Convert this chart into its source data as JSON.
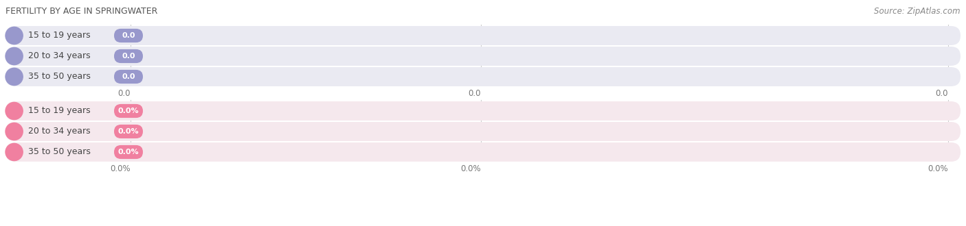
{
  "title": "FERTILITY BY AGE IN SPRINGWATER",
  "source": "Source: ZipAtlas.com",
  "top_section": {
    "categories": [
      "15 to 19 years",
      "20 to 34 years",
      "35 to 50 years"
    ],
    "values": [
      0.0,
      0.0,
      0.0
    ],
    "bar_accent_color": "#9898cc",
    "value_pill_color": "#9898cc",
    "bg_color": "#eaeaf2",
    "tick_labels": [
      "0.0",
      "0.0",
      "0.0"
    ]
  },
  "bottom_section": {
    "categories": [
      "15 to 19 years",
      "20 to 34 years",
      "35 to 50 years"
    ],
    "values": [
      0.0,
      0.0,
      0.0
    ],
    "bar_accent_color": "#f080a0",
    "value_pill_color": "#f080a0",
    "bg_color": "#f5e8ed",
    "tick_labels": [
      "0.0%",
      "0.0%",
      "0.0%"
    ]
  },
  "background_color": "#ffffff",
  "fig_width": 14.06,
  "fig_height": 3.3,
  "dpi": 100,
  "title_fontsize": 9,
  "source_fontsize": 8.5,
  "label_fontsize": 9,
  "value_fontsize": 8,
  "tick_fontsize": 8.5
}
